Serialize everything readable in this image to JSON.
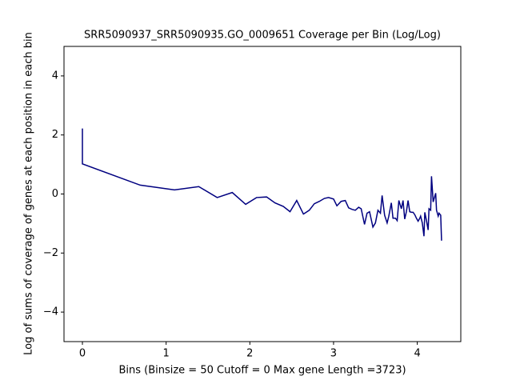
{
  "chart_data": {
    "type": "line",
    "title": "SRR5090937_SRR5090935.GO_0009651 Coverage per Bin (Log/Log)",
    "x_label": "Bins  (Binsize = 50 Cutoff = 0 Max gene Length =3723)",
    "y_label": "Log of sums of coverage of genes at each position in each bin",
    "xlim": [
      -0.22,
      4.52
    ],
    "ylim": [
      -5,
      5
    ],
    "xticks": [
      0,
      1,
      2,
      3,
      4
    ],
    "yticks": [
      {
        "value": -4,
        "label": "−4"
      },
      {
        "value": -2,
        "label": "−2"
      },
      0,
      2,
      4
    ],
    "grid": false,
    "series": [
      {
        "color": "#000080",
        "x": [
          0,
          0,
          0.69,
          1.1,
          1.39,
          1.61,
          1.79,
          1.95,
          2.08,
          2.2,
          2.3,
          2.4,
          2.48,
          2.56,
          2.64,
          2.71,
          2.77,
          2.83,
          2.89,
          2.94,
          3.0,
          3.04,
          3.09,
          3.14,
          3.18,
          3.22,
          3.26,
          3.3,
          3.33,
          3.37,
          3.4,
          3.43,
          3.47,
          3.5,
          3.53,
          3.56,
          3.58,
          3.61,
          3.64,
          3.66,
          3.69,
          3.71,
          3.74,
          3.76,
          3.78,
          3.81,
          3.83,
          3.85,
          3.87,
          3.89,
          3.91,
          3.93,
          3.95,
          3.97,
          3.99,
          4.01,
          4.03,
          4.04,
          4.06,
          4.08,
          4.09,
          4.11,
          4.13,
          4.14,
          4.16,
          4.17,
          4.19,
          4.2,
          4.22,
          4.23,
          4.25,
          4.26,
          4.28,
          4.29
        ],
        "values": [
          2.22,
          1.02,
          0.3,
          0.14,
          0.25,
          -0.12,
          0.05,
          -0.35,
          -0.12,
          -0.1,
          -0.3,
          -0.42,
          -0.6,
          -0.22,
          -0.68,
          -0.55,
          -0.33,
          -0.25,
          -0.15,
          -0.12,
          -0.17,
          -0.4,
          -0.25,
          -0.22,
          -0.47,
          -0.52,
          -0.55,
          -0.45,
          -0.5,
          -1.03,
          -0.65,
          -0.6,
          -1.12,
          -0.98,
          -0.55,
          -0.65,
          -0.05,
          -0.72,
          -0.98,
          -0.75,
          -0.3,
          -0.82,
          -0.82,
          -0.9,
          -0.22,
          -0.5,
          -0.22,
          -0.85,
          -0.6,
          -0.22,
          -0.6,
          -0.62,
          -0.62,
          -0.7,
          -0.82,
          -0.92,
          -0.82,
          -0.75,
          -0.98,
          -1.43,
          -0.62,
          -0.9,
          -1.22,
          -0.5,
          -0.55,
          0.6,
          -0.27,
          -0.17,
          0.03,
          -0.55,
          -0.75,
          -0.65,
          -0.72,
          -1.58
        ]
      }
    ]
  }
}
